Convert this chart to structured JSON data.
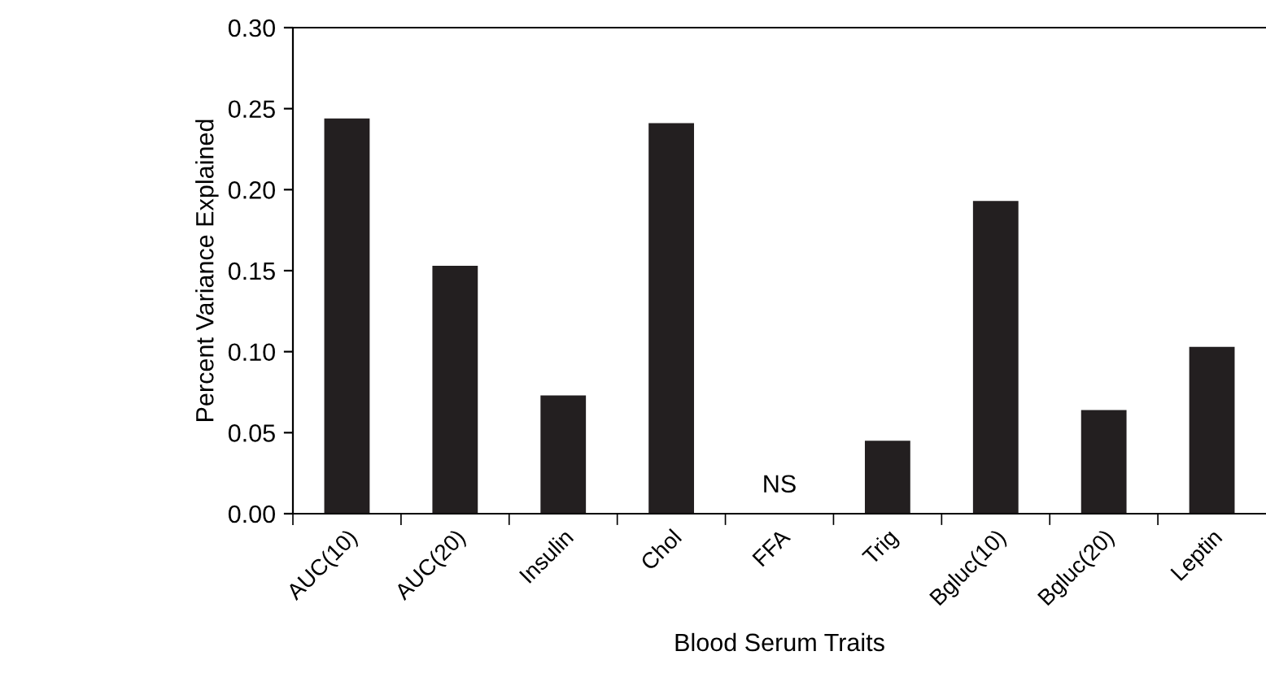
{
  "chart_data": {
    "type": "bar",
    "xlabel": "Blood Serum Traits",
    "ylabel": "Percent Variance Explained",
    "categories": [
      "AUC(10)",
      "AUC(20)",
      "Insulin",
      "Chol",
      "FFA",
      "Trig",
      "Bgluc(10)",
      "Bgluc(20)",
      "Leptin"
    ],
    "values": [
      0.244,
      0.153,
      0.073,
      0.241,
      null,
      0.045,
      0.193,
      0.064,
      0.103
    ],
    "color": "#231f20",
    "ylim": [
      0,
      0.3
    ],
    "yticks": [
      {
        "value": 0,
        "label": "0.00"
      },
      {
        "value": 0.05,
        "label": "0.05"
      },
      {
        "value": 0.1,
        "label": "0.10"
      },
      {
        "value": 0.15,
        "label": "0.15"
      },
      {
        "value": 0.2,
        "label": "0.20"
      },
      {
        "value": 0.25,
        "label": "0.25"
      },
      {
        "value": 0.3,
        "label": "0.30"
      }
    ],
    "annotations": [
      "NS"
    ],
    "grid": false,
    "legend": false
  }
}
